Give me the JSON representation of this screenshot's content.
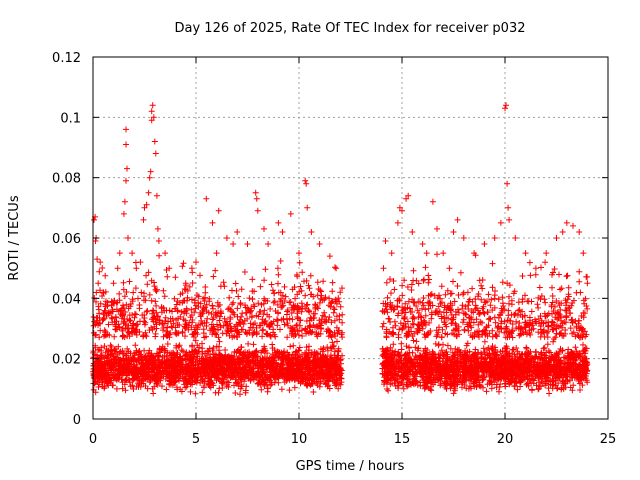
{
  "chart_data": {
    "type": "scatter",
    "title": "Day 126 of 2025, Rate Of TEC Index for receiver p032",
    "xlabel": "GPS time / hours",
    "ylabel": "ROTI / TECUs",
    "xlim": [
      0,
      25
    ],
    "ylim": [
      0,
      0.12
    ],
    "xticks": [
      0,
      5,
      10,
      15,
      20,
      25
    ],
    "yticks": [
      0,
      0.02,
      0.04,
      0.06,
      0.08,
      0.1,
      0.12
    ],
    "xtick_labels": [
      "0",
      "5",
      "10",
      "15",
      "20",
      "25"
    ],
    "ytick_labels": [
      "0",
      "0.02",
      "0.04",
      "0.06",
      "0.08",
      "0.1",
      "0.12"
    ],
    "grid": true,
    "marker": "+",
    "marker_color": "#ff0000",
    "series": [
      {
        "values_description_omitted": true,
        "points": [
          [
            0.05,
            0.066
          ],
          [
            0.1,
            0.067
          ],
          [
            0.12,
            0.059
          ],
          [
            0.15,
            0.06
          ],
          [
            0.2,
            0.053
          ],
          [
            0.25,
            0.045
          ],
          [
            0.3,
            0.035
          ],
          [
            0.35,
            0.052
          ],
          [
            0.5,
            0.042
          ],
          [
            0.6,
            0.038
          ],
          [
            1.0,
            0.045
          ],
          [
            1.2,
            0.05
          ],
          [
            1.3,
            0.055
          ],
          [
            1.5,
            0.068
          ],
          [
            1.55,
            0.072
          ],
          [
            1.6,
            0.079
          ],
          [
            1.65,
            0.083
          ],
          [
            1.6,
            0.091
          ],
          [
            1.6,
            0.096
          ],
          [
            1.7,
            0.06
          ],
          [
            1.9,
            0.055
          ],
          [
            2.1,
            0.05
          ],
          [
            2.3,
            0.052
          ],
          [
            2.45,
            0.066
          ],
          [
            2.5,
            0.07
          ],
          [
            2.6,
            0.071
          ],
          [
            2.7,
            0.075
          ],
          [
            2.75,
            0.08
          ],
          [
            2.8,
            0.082
          ],
          [
            2.85,
            0.099
          ],
          [
            2.85,
            0.102
          ],
          [
            2.9,
            0.104
          ],
          [
            2.95,
            0.1
          ],
          [
            3.0,
            0.092
          ],
          [
            3.05,
            0.088
          ],
          [
            3.1,
            0.074
          ],
          [
            3.15,
            0.063
          ],
          [
            3.2,
            0.059
          ],
          [
            3.5,
            0.055
          ],
          [
            3.7,
            0.05
          ],
          [
            4.0,
            0.047
          ],
          [
            4.5,
            0.045
          ],
          [
            4.8,
            0.05
          ],
          [
            5.0,
            0.052
          ],
          [
            5.5,
            0.073
          ],
          [
            5.8,
            0.065
          ],
          [
            6.0,
            0.055
          ],
          [
            6.1,
            0.069
          ],
          [
            6.5,
            0.06
          ],
          [
            6.8,
            0.058
          ],
          [
            7.0,
            0.062
          ],
          [
            7.5,
            0.058
          ],
          [
            7.9,
            0.075
          ],
          [
            7.95,
            0.073
          ],
          [
            8.0,
            0.069
          ],
          [
            8.3,
            0.063
          ],
          [
            8.5,
            0.058
          ],
          [
            9.0,
            0.065
          ],
          [
            9.2,
            0.062
          ],
          [
            9.6,
            0.068
          ],
          [
            10.0,
            0.055
          ],
          [
            10.3,
            0.079
          ],
          [
            10.35,
            0.078
          ],
          [
            10.4,
            0.07
          ],
          [
            10.6,
            0.062
          ],
          [
            11.0,
            0.058
          ],
          [
            11.5,
            0.054
          ],
          [
            11.8,
            0.05
          ],
          [
            12.0,
            0.042
          ],
          [
            14.1,
            0.05
          ],
          [
            14.2,
            0.059
          ],
          [
            14.5,
            0.055
          ],
          [
            14.8,
            0.065
          ],
          [
            14.9,
            0.07
          ],
          [
            15.0,
            0.069
          ],
          [
            15.2,
            0.073
          ],
          [
            15.3,
            0.074
          ],
          [
            15.5,
            0.062
          ],
          [
            16.0,
            0.058
          ],
          [
            16.2,
            0.055
          ],
          [
            16.5,
            0.072
          ],
          [
            16.7,
            0.063
          ],
          [
            17.0,
            0.055
          ],
          [
            17.3,
            0.05
          ],
          [
            17.5,
            0.062
          ],
          [
            17.7,
            0.066
          ],
          [
            18.0,
            0.06
          ],
          [
            18.5,
            0.055
          ],
          [
            19.0,
            0.058
          ],
          [
            19.5,
            0.06
          ],
          [
            19.8,
            0.065
          ],
          [
            20.0,
            0.103
          ],
          [
            20.05,
            0.104
          ],
          [
            20.1,
            0.078
          ],
          [
            20.15,
            0.07
          ],
          [
            20.2,
            0.066
          ],
          [
            20.5,
            0.06
          ],
          [
            21.0,
            0.055
          ],
          [
            21.5,
            0.05
          ],
          [
            22.0,
            0.055
          ],
          [
            22.5,
            0.06
          ],
          [
            22.8,
            0.062
          ],
          [
            23.0,
            0.065
          ],
          [
            23.3,
            0.064
          ],
          [
            23.6,
            0.062
          ],
          [
            23.8,
            0.055
          ],
          [
            24.0,
            0.045
          ]
        ]
      }
    ]
  }
}
